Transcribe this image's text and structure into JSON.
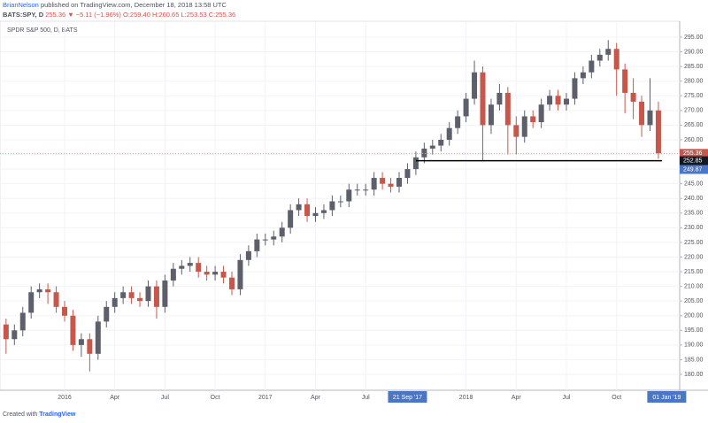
{
  "header": {
    "publisher": "BrianNelson",
    "published": " published on TradingView.com, December 18, 2018 13:58 UTC",
    "symbol": "BATS:SPY, D",
    "price": "255.36",
    "change": "▼ −5.11 (−1.96%)",
    "ohlc": "O:259.40 H:260.65 L:253.53 C:255.36"
  },
  "chart_data": {
    "type": "candlestick",
    "legend": "SPDR S&P 500, D, BATS",
    "categories": [
      null,
      null,
      null,
      null,
      null,
      null,
      null,
      "2016",
      null,
      null,
      null,
      null,
      null,
      "Apr",
      null,
      null,
      null,
      null,
      null,
      "Jul",
      null,
      null,
      null,
      null,
      null,
      "Oct",
      null,
      null,
      null,
      null,
      null,
      "2017",
      null,
      null,
      null,
      null,
      null,
      "Apr",
      null,
      null,
      null,
      null,
      null,
      "Jul",
      null,
      null,
      null,
      null,
      "21 Sep '17",
      null,
      null,
      null,
      null,
      null,
      null,
      "2018",
      null,
      null,
      null,
      null,
      null,
      "Apr",
      null,
      null,
      null,
      null,
      null,
      "Jul",
      null,
      null,
      null,
      null,
      null,
      "Oct",
      null,
      null,
      null,
      null,
      null,
      "01 Jan '19"
    ],
    "open": [
      197,
      192,
      195,
      201,
      208,
      209,
      208,
      203,
      200,
      190,
      192,
      187,
      198,
      203,
      206,
      208,
      206,
      205,
      210,
      203,
      212,
      216,
      217,
      218,
      215,
      214,
      215,
      213,
      209,
      219,
      222,
      226,
      226,
      227,
      230,
      236,
      238,
      234,
      235,
      236,
      239,
      239,
      243,
      243,
      243,
      247,
      245,
      244,
      247,
      250,
      254,
      257,
      258,
      260,
      264,
      268,
      274,
      283,
      265,
      272,
      276,
      265,
      261,
      268,
      266,
      272,
      275,
      272,
      274,
      281,
      283,
      287,
      289,
      291,
      284,
      276,
      273,
      265,
      270,
      null
    ],
    "high": [
      199,
      197,
      203,
      210,
      211,
      211,
      210,
      205,
      202,
      194,
      194,
      200,
      205,
      208,
      210,
      210,
      208,
      212,
      212,
      214,
      218,
      219,
      220,
      220,
      217,
      217,
      217,
      215,
      221,
      224,
      228,
      228,
      229,
      232,
      238,
      240,
      240,
      237,
      238,
      241,
      241,
      245,
      245,
      245,
      249,
      249,
      247,
      249,
      252,
      256,
      259,
      260,
      262,
      266,
      270,
      276,
      287,
      285,
      274,
      279,
      278,
      268,
      270,
      270,
      274,
      277,
      277,
      276,
      283,
      285,
      289,
      291,
      294,
      293,
      286,
      281,
      275,
      281,
      273,
      null
    ],
    "low": [
      187,
      190,
      193,
      199,
      206,
      204,
      201,
      198,
      188,
      186,
      181,
      185,
      196,
      201,
      204,
      204,
      203,
      203,
      199,
      201,
      210,
      214,
      215,
      213,
      212,
      212,
      211,
      207,
      207,
      217,
      220,
      224,
      224,
      225,
      228,
      234,
      232,
      232,
      233,
      234,
      237,
      237,
      241,
      241,
      241,
      243,
      242,
      242,
      245,
      248,
      252,
      255,
      256,
      258,
      262,
      266,
      272,
      253,
      262,
      270,
      255,
      255,
      259,
      264,
      264,
      270,
      270,
      270,
      272,
      279,
      281,
      285,
      287,
      275,
      269,
      267,
      261,
      263,
      253.53,
      null
    ],
    "close": [
      192,
      195,
      201,
      208,
      209,
      208,
      203,
      200,
      190,
      192,
      187,
      198,
      203,
      206,
      208,
      206,
      205,
      210,
      203,
      212,
      216,
      217,
      218,
      215,
      214,
      215,
      213,
      209,
      219,
      222,
      226,
      226,
      227,
      230,
      236,
      238,
      234,
      235,
      236,
      239,
      239,
      243,
      243,
      243,
      247,
      245,
      244,
      247,
      250,
      254,
      257,
      258,
      260,
      264,
      268,
      274,
      283,
      265,
      272,
      276,
      265,
      261,
      268,
      266,
      272,
      275,
      272,
      274,
      281,
      283,
      287,
      289,
      291,
      284,
      276,
      273,
      265,
      270,
      255.36,
      null
    ],
    "up_color": "#5d606b",
    "down_color": "#c8574b",
    "ylim": [
      174.57,
      300.43
    ],
    "yticks": [
      {
        "value": 180,
        "label": "180.00"
      },
      {
        "value": 185,
        "label": "185.00"
      },
      {
        "value": 190,
        "label": "190.00"
      },
      {
        "value": 195,
        "label": "195.00"
      },
      {
        "value": 200,
        "label": "200.00"
      },
      {
        "value": 205,
        "label": "205.00"
      },
      {
        "value": 210,
        "label": "210.00"
      },
      {
        "value": 215,
        "label": "215.00"
      },
      {
        "value": 220,
        "label": "220.00"
      },
      {
        "value": 225,
        "label": "225.00"
      },
      {
        "value": 230,
        "label": "230.00"
      },
      {
        "value": 235,
        "label": "235.00"
      },
      {
        "value": 240,
        "label": "240.00"
      },
      {
        "value": 245,
        "label": "245.00"
      },
      {
        "value": 250,
        "label": "250.00"
      },
      {
        "value": 255,
        "label": "255.00"
      },
      {
        "value": 260,
        "label": "260.00"
      },
      {
        "value": 265,
        "label": "265.00"
      },
      {
        "value": 270,
        "label": "270.00"
      },
      {
        "value": 275,
        "label": "275.00"
      },
      {
        "value": 280,
        "label": "280.00"
      },
      {
        "value": 285,
        "label": "285.00"
      },
      {
        "value": 290,
        "label": "290.00"
      },
      {
        "value": 295,
        "label": "295.00"
      }
    ],
    "grid": true,
    "hline": 252.85,
    "crosshair_y": 249.87
  },
  "footer": {
    "text": "Created with",
    "brand": "TradingView"
  }
}
